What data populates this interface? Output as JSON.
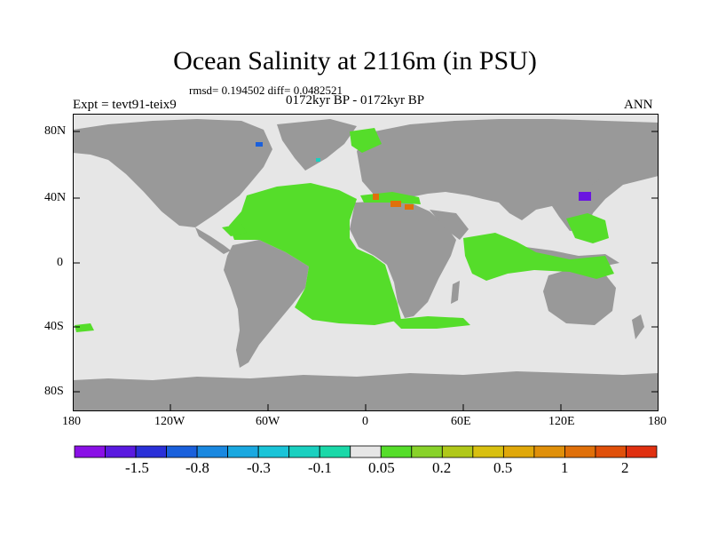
{
  "title": "Ocean Salinity at 2116m (in PSU)",
  "stats": "rmsd= 0.194502  diff= 0.0482521",
  "experiment": "Expt = tevt91-teix9",
  "period": "0172kyr BP - 0172kyr BP",
  "season": "ANN",
  "map": {
    "lat_labels": [
      "80N",
      "40N",
      "0",
      "40S",
      "80S"
    ],
    "lon_labels": [
      "180",
      "120W",
      "60W",
      "0",
      "60E",
      "120E",
      "180"
    ],
    "colors": {
      "land": "#999999",
      "ocean_no_change": "#e6e6e6",
      "ocean_positive": "#55dd2a",
      "coast": "#000000"
    }
  },
  "colorbar": {
    "colors": [
      "#8a10e6",
      "#5a1ae0",
      "#2a30d8",
      "#1a60dc",
      "#1a88e0",
      "#1aa8e0",
      "#1ac4d8",
      "#1ad0c0",
      "#1ad8a8",
      "#e6e6e6",
      "#55dd2a",
      "#88d22a",
      "#b0c81a",
      "#d8c010",
      "#e0a80a",
      "#e0900a",
      "#e0700a",
      "#e0500a",
      "#e03010"
    ],
    "labels": [
      "-1.5",
      "-0.8",
      "-0.3",
      "-0.1",
      "0.05",
      "0.2",
      "0.5",
      "1",
      "2"
    ]
  }
}
